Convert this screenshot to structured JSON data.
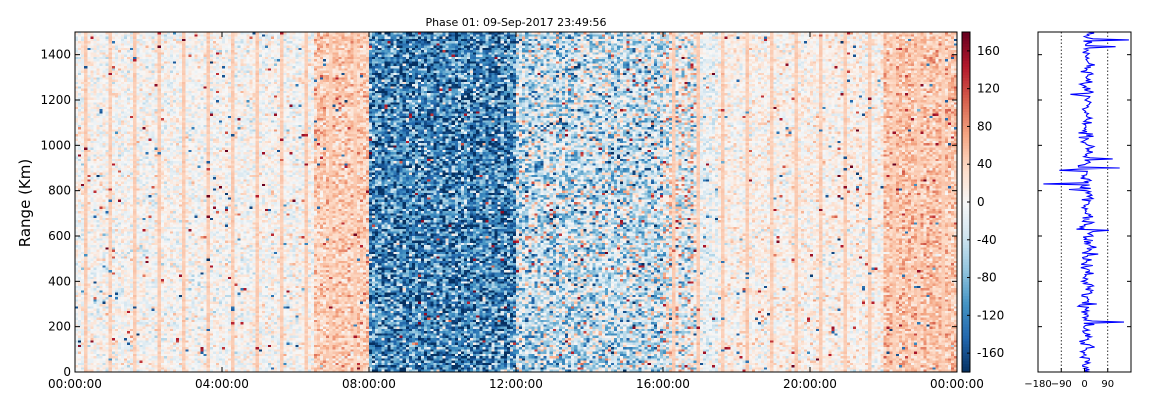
{
  "chart_data": [
    {
      "type": "heatmap",
      "title": "Phase 01: 09-Sep-2017 23:49:56",
      "ylabel": "Range (Km)",
      "xlabel": "",
      "x_range": [
        "00:00:00",
        "24:00:00"
      ],
      "xticks": [
        "00:00:00",
        "04:00:00",
        "08:00:00",
        "12:00:00",
        "16:00:00",
        "20:00:00",
        "00:00:00"
      ],
      "ylim": [
        0,
        1500
      ],
      "yticks": [
        0,
        200,
        400,
        600,
        800,
        1000,
        1200,
        1400
      ],
      "colormap": "RdBu_r",
      "colorbar": {
        "vmin": -180,
        "vmax": 180,
        "ticks": [
          -160,
          -120,
          -80,
          -40,
          0,
          40,
          80,
          120,
          160
        ]
      },
      "colors": {
        "low": "#053061",
        "mid": "#f7f7f7",
        "high": "#67001f"
      },
      "description_of_pattern": [
        {
          "x_start_hr": 0,
          "x_end_hr": 6.5,
          "mean_phase": 0
        },
        {
          "x_start_hr": 6.5,
          "x_end_hr": 8,
          "mean_phase": 45
        },
        {
          "x_start_hr": 8,
          "x_end_hr": 12,
          "mean_phase": -120
        },
        {
          "x_start_hr": 12,
          "x_end_hr": 16,
          "mean_phase": -40
        },
        {
          "x_start_hr": 16,
          "x_end_hr": 17.5,
          "mean_phase": -10
        },
        {
          "x_start_hr": 17.5,
          "x_end_hr": 22,
          "mean_phase": 8
        },
        {
          "x_start_hr": 22,
          "x_end_hr": 24,
          "mean_phase": 50
        }
      ]
    },
    {
      "type": "line",
      "series": [
        {
          "color": "#0000ff",
          "xlim": [
            -180,
            180
          ],
          "xticks": [
            -180,
            -90,
            0,
            90
          ],
          "dotted_reference_lines": [
            -90,
            90
          ],
          "ylim": [
            0,
            1500
          ],
          "profile_mean": 10
        }
      ]
    }
  ]
}
